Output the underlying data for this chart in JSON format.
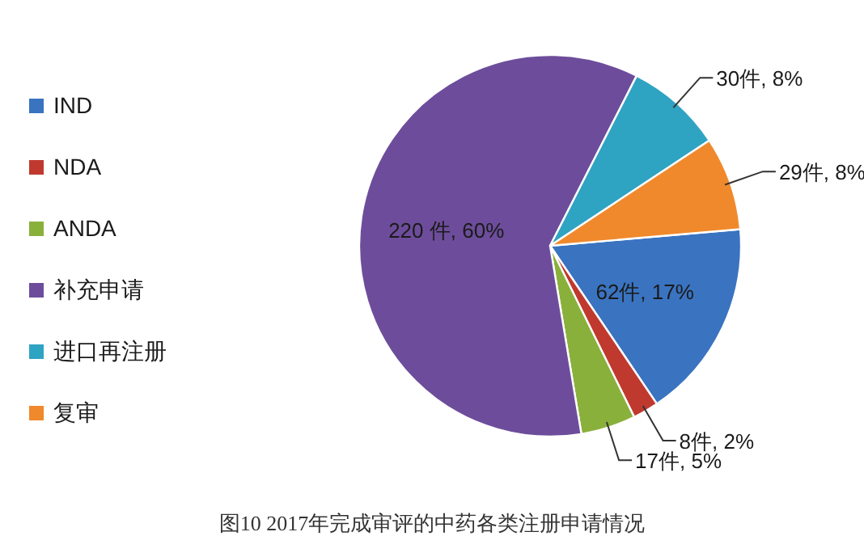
{
  "chart_data": {
    "type": "pie",
    "categories": [
      "IND",
      "NDA",
      "ANDA",
      "补充申请",
      "进口再注册",
      "复审"
    ],
    "values": [
      62,
      8,
      17,
      220,
      30,
      29
    ],
    "colors": [
      "#3a73c0",
      "#c0392f",
      "#8ab03c",
      "#6d4d9b",
      "#2fa3c2",
      "#f0892c"
    ],
    "value_labels": [
      "62件, 17%",
      "8件, 2%",
      "17件, 5%",
      "220 件, 60%",
      "30件, 8%",
      "29件, 8%"
    ],
    "legend": "left",
    "annotations": [
      "图10 2017年完成审评的中药各类注册申请情况"
    ]
  }
}
